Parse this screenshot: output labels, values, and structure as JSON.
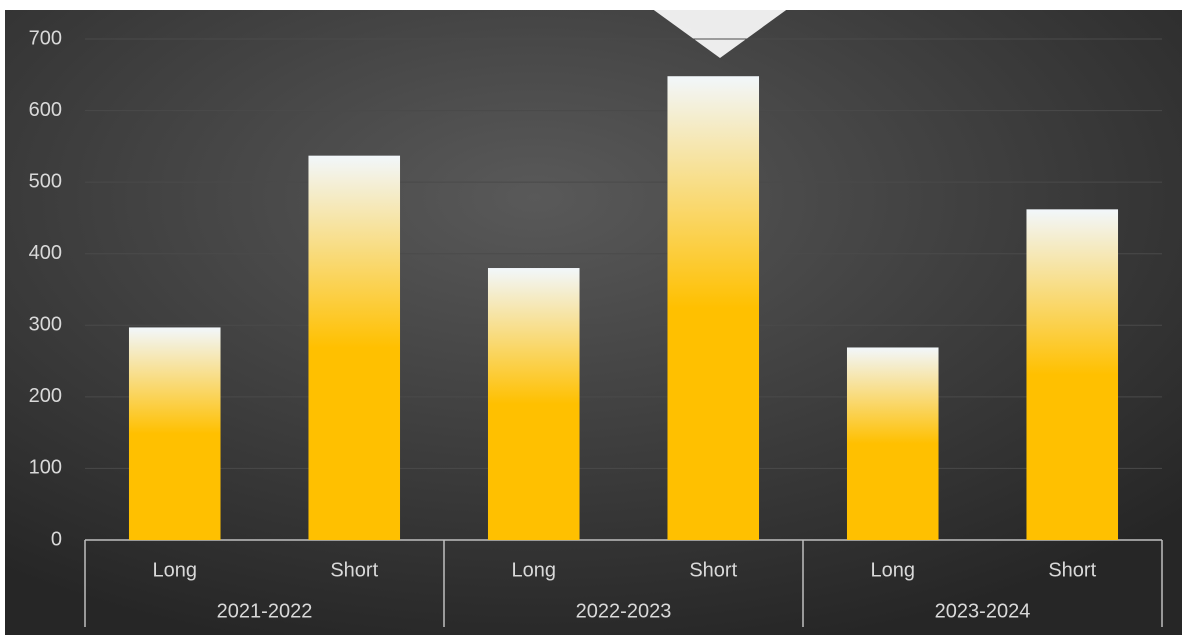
{
  "chart_data": {
    "type": "bar",
    "categories": [
      "Long",
      "Short",
      "Long",
      "Short",
      "Long",
      "Short"
    ],
    "groups": [
      "2021-2022",
      "2022-2023",
      "2023-2024"
    ],
    "values": [
      297,
      537,
      380,
      648,
      269,
      462
    ],
    "color": "#ffc000",
    "ylim": [
      0,
      700
    ],
    "yticks": [
      0,
      100,
      200,
      300,
      400,
      500,
      600,
      700
    ],
    "grid": true
  }
}
